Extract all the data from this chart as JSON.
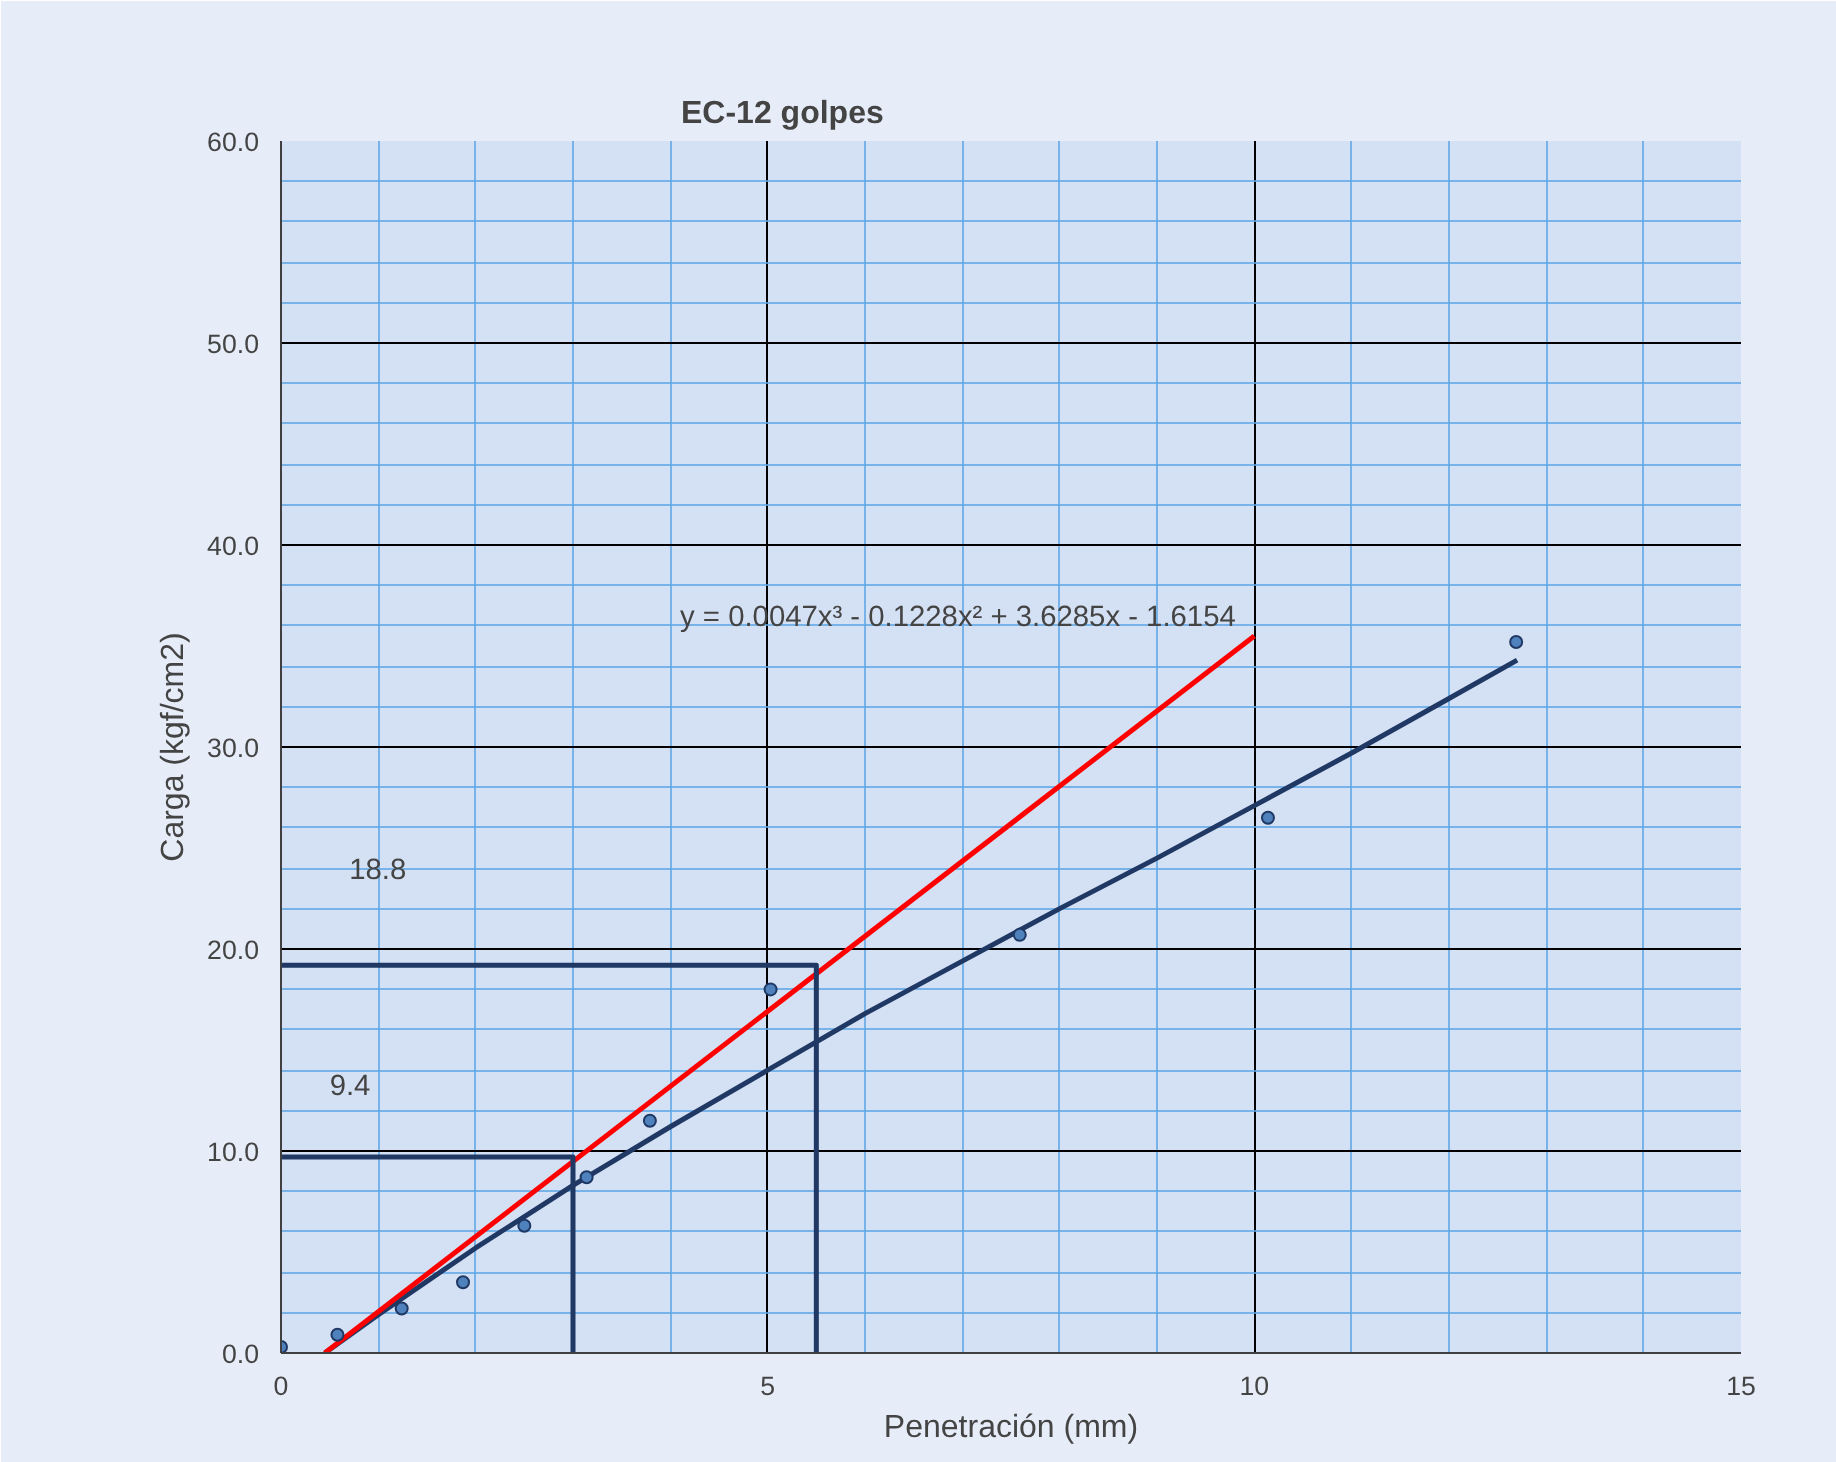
{
  "chart_data": {
    "type": "scatter",
    "title": "EC-12 golpes",
    "xlabel": "Penetración (mm)",
    "ylabel": "Carga (kgf/cm2)",
    "xlim": [
      0,
      15
    ],
    "ylim": [
      0,
      60
    ],
    "xticks": [
      0,
      {
        "value": 1,
        "label": null
      },
      {
        "value": 2,
        "label": null
      },
      {
        "value": 3,
        "label": null
      },
      {
        "value": 4,
        "label": null
      },
      5,
      {
        "value": 6,
        "label": null
      },
      {
        "value": 7,
        "label": null
      },
      {
        "value": 8,
        "label": null
      },
      {
        "value": 9,
        "label": null
      },
      10,
      {
        "value": 11,
        "label": null
      },
      {
        "value": 12,
        "label": null
      },
      {
        "value": 13,
        "label": null
      },
      {
        "value": 14,
        "label": null
      },
      15
    ],
    "yticks": [
      {
        "value": 0,
        "label": "0.0"
      },
      {
        "value": 2,
        "label": null
      },
      {
        "value": 4,
        "label": null
      },
      {
        "value": 6,
        "label": null
      },
      {
        "value": 8,
        "label": null
      },
      {
        "value": 10,
        "label": "10.0"
      },
      {
        "value": 12,
        "label": null
      },
      {
        "value": 14,
        "label": null
      },
      {
        "value": 16,
        "label": null
      },
      {
        "value": 18,
        "label": null
      },
      {
        "value": 20,
        "label": "20.0"
      },
      {
        "value": 22,
        "label": null
      },
      {
        "value": 24,
        "label": null
      },
      {
        "value": 26,
        "label": null
      },
      {
        "value": 28,
        "label": null
      },
      {
        "value": 30,
        "label": "30.0"
      },
      {
        "value": 32,
        "label": null
      },
      {
        "value": 34,
        "label": null
      },
      {
        "value": 36,
        "label": null
      },
      {
        "value": 38,
        "label": null
      },
      {
        "value": 40,
        "label": "40.0"
      },
      {
        "value": 42,
        "label": null
      },
      {
        "value": 44,
        "label": null
      },
      {
        "value": 46,
        "label": null
      },
      {
        "value": 48,
        "label": null
      },
      {
        "value": 50,
        "label": "50.0"
      },
      {
        "value": 52,
        "label": null
      },
      {
        "value": 54,
        "label": null
      },
      {
        "value": 56,
        "label": null
      },
      {
        "value": 58,
        "label": null
      },
      {
        "value": 60,
        "label": "60.0"
      }
    ],
    "grid": true,
    "series": [
      {
        "marker": "circle",
        "color": "#4f81bd",
        "x": [
          0,
          0.58,
          1.24,
          1.87,
          2.5,
          3.14,
          3.79,
          5.03,
          7.59,
          10.14,
          12.69
        ],
        "values": [
          0.3,
          0.9,
          2.2,
          3.5,
          6.3,
          8.7,
          11.5,
          18.0,
          20.7,
          26.5,
          35.2
        ]
      },
      {
        "type": "line",
        "color": "#1f3864",
        "x": [
          0.45,
          1,
          2,
          3,
          4,
          5,
          6,
          7,
          8,
          9,
          10,
          11,
          12,
          12.7
        ],
        "values": [
          0,
          1.9,
          5.2,
          8.3,
          11.2,
          14.0,
          16.8,
          19.4,
          22.0,
          24.5,
          27.1,
          29.7,
          32.4,
          34.3
        ]
      },
      {
        "type": "line",
        "color": "#ff0000",
        "x": [
          0.45,
          10
        ],
        "values": [
          0,
          35.5
        ]
      },
      {
        "type": "line",
        "color": "#1f3864",
        "x": [
          0,
          3,
          3
        ],
        "values": [
          9.7,
          9.7,
          0
        ]
      },
      {
        "type": "line",
        "color": "#1f3864",
        "x": [
          0,
          5.5,
          5.5
        ],
        "values": [
          19.2,
          19.2,
          0
        ]
      }
    ],
    "annotations": [
      "y = 0.0047x³ - 0.1228x² + 3.6285x - 1.6154",
      "18.8",
      "9.4"
    ]
  }
}
